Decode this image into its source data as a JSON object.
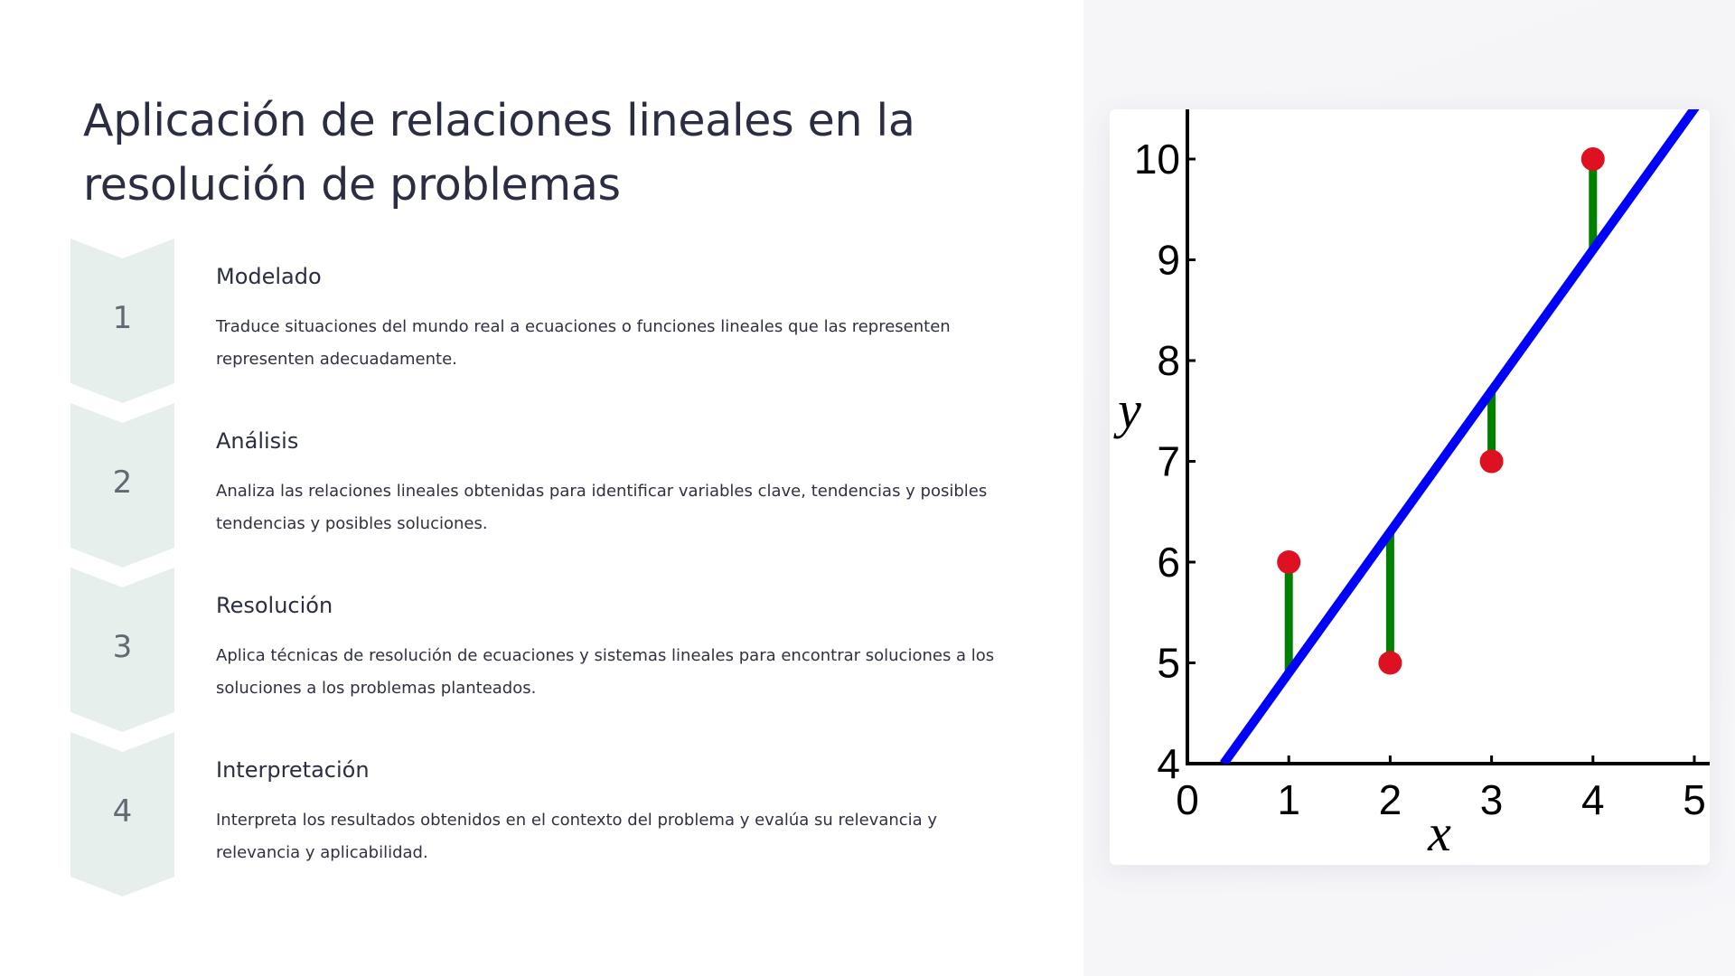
{
  "slide": {
    "title": "Aplicación de relaciones lineales en la resolución de problemas"
  },
  "steps": [
    {
      "number": "1",
      "title": "Modelado",
      "description": "Traduce situaciones del mundo real a ecuaciones o funciones lineales que las representen representen adecuadamente."
    },
    {
      "number": "2",
      "title": "Análisis",
      "description": "Analiza las relaciones lineales obtenidas para identificar variables clave, tendencias y posibles tendencias y posibles soluciones."
    },
    {
      "number": "3",
      "title": "Resolución",
      "description": "Aplica técnicas de resolución de ecuaciones y sistemas lineales para encontrar soluciones a los soluciones a los problemas planteados."
    },
    {
      "number": "4",
      "title": "Interpretación",
      "description": "Interpreta los resultados obtenidos en el contexto del problema y evalúa su relevancia y relevancia y aplicabilidad."
    }
  ],
  "colors": {
    "chevron_fill": "#e6efec",
    "fit_line": "#0000ff",
    "residual": "#008000",
    "point": "#dd1122",
    "axis": "#000000"
  },
  "chart_data": {
    "type": "scatter",
    "title": "",
    "xlabel": "x",
    "ylabel": "y",
    "xlim": [
      0,
      5
    ],
    "ylim": [
      4,
      10.5
    ],
    "x_ticks": [
      0,
      1,
      2,
      3,
      4,
      5
    ],
    "y_ticks": [
      4,
      5,
      6,
      7,
      8,
      9,
      10
    ],
    "grid": false,
    "points": [
      {
        "x": 1,
        "y": 6
      },
      {
        "x": 2,
        "y": 5
      },
      {
        "x": 3,
        "y": 7
      },
      {
        "x": 4,
        "y": 10
      }
    ],
    "fit_line": {
      "slope": 1.4,
      "intercept": 3.5
    },
    "residuals": true
  }
}
